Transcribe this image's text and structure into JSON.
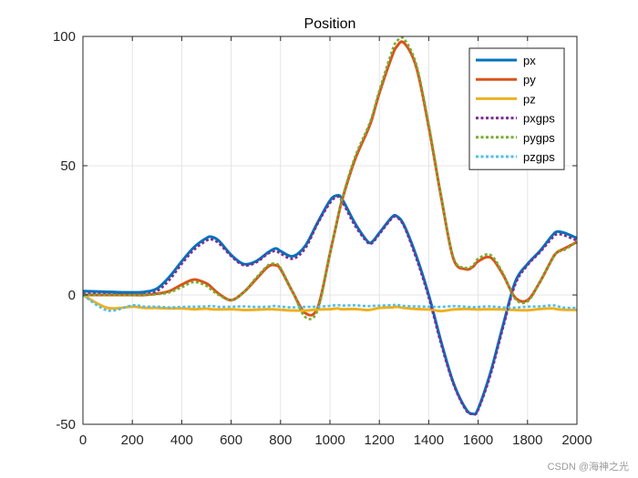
{
  "chart_data": {
    "type": "line",
    "title": "Position",
    "xlabel": "",
    "ylabel": "",
    "xlim": [
      0,
      2000
    ],
    "ylim": [
      -50,
      100
    ],
    "xticks": [
      "0",
      "200",
      "400",
      "600",
      "800",
      "1000",
      "1200",
      "1400",
      "1600",
      "1800",
      "2000"
    ],
    "yticks": [
      "-50",
      "0",
      "50",
      "100"
    ],
    "grid": true,
    "legend_position": "top-right",
    "x": [
      0,
      100,
      200,
      250,
      300,
      350,
      400,
      450,
      500,
      520,
      550,
      600,
      650,
      700,
      750,
      780,
      800,
      850,
      900,
      950,
      1000,
      1030,
      1050,
      1100,
      1150,
      1170,
      1200,
      1250,
      1270,
      1300,
      1350,
      1400,
      1450,
      1500,
      1550,
      1580,
      1600,
      1650,
      1700,
      1750,
      1800,
      1850,
      1900,
      1920,
      1950,
      2000
    ],
    "series": [
      {
        "name": "px",
        "color": "#0072BD",
        "style": "solid",
        "values": [
          1.5,
          1.2,
          1.0,
          1.2,
          2.5,
          7.0,
          13.0,
          18.5,
          22.0,
          22.5,
          21.0,
          15.5,
          12.0,
          13.0,
          16.5,
          18.0,
          17.0,
          15.0,
          19.0,
          28.0,
          36.5,
          38.5,
          37.0,
          28.0,
          21.0,
          20.5,
          24.0,
          30.0,
          30.5,
          27.0,
          15.0,
          0.0,
          -18.0,
          -34.0,
          -44.0,
          -46.0,
          -44.0,
          -30.0,
          -12.0,
          5.0,
          12.0,
          17.0,
          23.0,
          24.5,
          24.0,
          22.0
        ]
      },
      {
        "name": "py",
        "color": "#D95319",
        "style": "solid",
        "values": [
          0.0,
          0.0,
          0.0,
          0.0,
          0.5,
          1.5,
          4.0,
          6.0,
          4.5,
          3.0,
          0.5,
          -2.0,
          1.0,
          6.0,
          11.0,
          11.5,
          10.0,
          1.0,
          -7.0,
          -5.0,
          16.0,
          29.0,
          37.0,
          52.0,
          63.0,
          68.0,
          78.0,
          92.0,
          96.0,
          97.5,
          88.0,
          65.0,
          38.0,
          14.0,
          10.0,
          11.0,
          13.0,
          14.5,
          8.0,
          -1.0,
          -2.0,
          5.0,
          14.0,
          16.5,
          18.0,
          20.5
        ]
      },
      {
        "name": "pz",
        "color": "#EDB120",
        "style": "solid",
        "values": [
          0.0,
          -5.0,
          -4.5,
          -5.0,
          -5.0,
          -5.2,
          -5.2,
          -5.5,
          -5.3,
          -5.5,
          -5.6,
          -5.5,
          -5.8,
          -5.7,
          -5.5,
          -5.6,
          -5.7,
          -6.0,
          -6.0,
          -5.6,
          -5.5,
          -5.2,
          -5.5,
          -5.4,
          -5.8,
          -5.6,
          -5.0,
          -4.8,
          -4.6,
          -5.0,
          -5.4,
          -5.6,
          -6.2,
          -5.6,
          -5.4,
          -5.5,
          -5.6,
          -5.5,
          -5.6,
          -5.8,
          -5.9,
          -5.4,
          -5.2,
          -5.5,
          -5.7,
          -5.8
        ]
      },
      {
        "name": "pxgps",
        "color": "#7E2F8E",
        "style": "dotted",
        "values": [
          0.5,
          0.3,
          0.0,
          0.3,
          1.5,
          5.8,
          12.0,
          17.5,
          21.0,
          21.5,
          20.0,
          15.0,
          11.5,
          12.5,
          16.0,
          17.0,
          16.0,
          14.0,
          18.0,
          27.5,
          35.5,
          38.0,
          36.0,
          27.0,
          20.5,
          20.0,
          23.5,
          29.5,
          30.0,
          26.5,
          14.0,
          -1.0,
          -19.0,
          -34.5,
          -44.5,
          -46.0,
          -44.5,
          -31.0,
          -13.0,
          4.0,
          11.5,
          16.5,
          22.0,
          23.5,
          23.0,
          21.0
        ]
      },
      {
        "name": "pygps",
        "color": "#77AC30",
        "style": "dotted",
        "values": [
          0.0,
          0.0,
          0.0,
          0.0,
          0.3,
          1.0,
          3.0,
          5.0,
          3.5,
          2.0,
          0.0,
          -2.0,
          1.0,
          6.5,
          11.5,
          12.0,
          10.5,
          1.0,
          -8.5,
          -6.0,
          16.0,
          29.0,
          37.5,
          53.0,
          64.0,
          69.0,
          79.0,
          94.0,
          98.0,
          99.0,
          89.0,
          66.0,
          38.5,
          14.5,
          10.5,
          11.5,
          14.0,
          15.5,
          8.5,
          -1.5,
          -2.5,
          5.0,
          14.0,
          16.5,
          17.5,
          20.5
        ]
      },
      {
        "name": "pzgps",
        "color": "#4DBEEE",
        "style": "dotted",
        "values": [
          0.0,
          -6.0,
          -4.0,
          -4.5,
          -4.5,
          -4.8,
          -4.6,
          -4.5,
          -4.4,
          -4.2,
          -4.6,
          -4.5,
          -4.4,
          -4.6,
          -4.5,
          -4.2,
          -4.5,
          -4.8,
          -4.6,
          -4.5,
          -4.2,
          -3.9,
          -4.1,
          -4.0,
          -4.3,
          -4.2,
          -4.1,
          -3.9,
          -3.8,
          -4.2,
          -4.4,
          -4.5,
          -4.6,
          -4.3,
          -4.5,
          -4.7,
          -4.6,
          -4.4,
          -4.8,
          -4.9,
          -4.5,
          -4.4,
          -4.0,
          -4.3,
          -4.9,
          -5.0
        ]
      }
    ]
  },
  "watermark": "CSDN @海神之光"
}
